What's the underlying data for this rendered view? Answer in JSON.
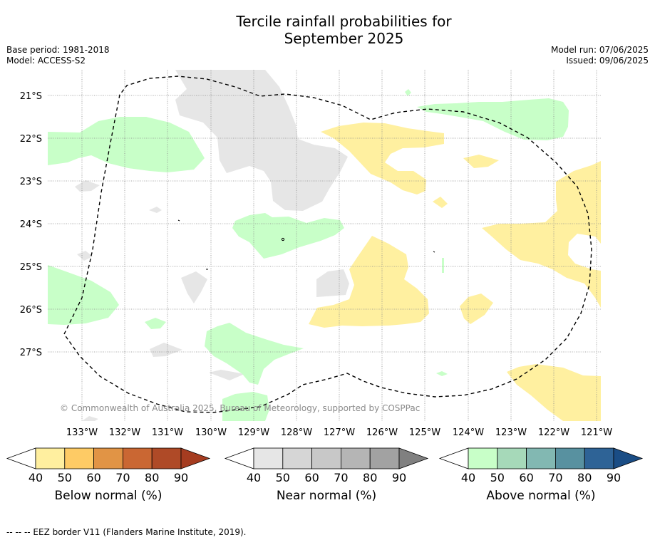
{
  "header": {
    "title_line1": "Tercile rainfall probabilities for",
    "title_line2": "September 2025",
    "base_period": "Base period: 1981-2018",
    "model": "Model: ACCESS-S2",
    "model_run": "Model run: 07/06/2025",
    "issued": "Issued: 09/06/2025"
  },
  "map": {
    "lat_labels": [
      "21°S",
      "22°S",
      "23°S",
      "24°S",
      "25°S",
      "26°S",
      "27°S"
    ],
    "lon_labels": [
      "133°W",
      "132°W",
      "131°W",
      "130°W",
      "129°W",
      "128°W",
      "127°W",
      "126°W",
      "125°W",
      "124°W",
      "123°W",
      "122°W",
      "121°W"
    ],
    "copyright": "© Commonwealth of Australia 2025, Bureau of Meteorology, supported by COSPPac",
    "colors": {
      "below_40": "#fff0a0",
      "near_40": "#e6e6e6",
      "above_40": "#c8ffc8",
      "eez_line": "#000000"
    }
  },
  "colorbars": [
    {
      "label": "Below normal (%)",
      "ticks": [
        "40",
        "50",
        "60",
        "70",
        "80",
        "90"
      ],
      "colors": [
        "#ffef9f",
        "#fecb65",
        "#e19445",
        "#ca6733",
        "#af4a27",
        "#a53c20"
      ]
    },
    {
      "label": "Near normal (%)",
      "ticks": [
        "40",
        "50",
        "60",
        "70",
        "80",
        "90"
      ],
      "colors": [
        "#e6e6e6",
        "#d6d6d6",
        "#c8c8c8",
        "#b5b5b5",
        "#a2a2a2",
        "#808080"
      ]
    },
    {
      "label": "Above normal (%)",
      "ticks": [
        "40",
        "50",
        "60",
        "70",
        "80",
        "90"
      ],
      "colors": [
        "#c8ffc8",
        "#a6d9b9",
        "#82b8b2",
        "#5891a0",
        "#2e6396",
        "#1a4d85"
      ]
    }
  ],
  "footer": {
    "legend_text": "--  --  -- EEZ border V11 (Flanders Marine Institute, 2019)."
  }
}
